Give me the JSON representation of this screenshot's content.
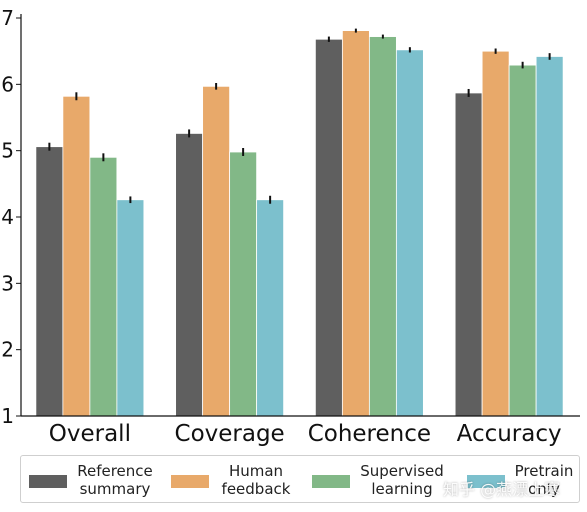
{
  "chart_data": {
    "type": "bar",
    "categories": [
      "Overall",
      "Coverage",
      "Coherence",
      "Accuracy"
    ],
    "series": [
      {
        "name": "Reference\nsummary",
        "color": "#5f5f5f",
        "values": [
          5.06,
          5.26,
          6.68,
          5.87
        ],
        "errors": [
          0.06,
          0.06,
          0.04,
          0.06
        ]
      },
      {
        "name": "Human\nfeedback",
        "color": "#e8a96a",
        "values": [
          5.82,
          5.97,
          6.81,
          6.5
        ],
        "errors": [
          0.06,
          0.05,
          0.03,
          0.04
        ]
      },
      {
        "name": "Supervised\nlearning",
        "color": "#82b887",
        "values": [
          4.9,
          4.98,
          6.72,
          6.29
        ],
        "errors": [
          0.06,
          0.06,
          0.03,
          0.05
        ]
      },
      {
        "name": "Pretrain\nonly",
        "color": "#7cc0cd",
        "values": [
          4.26,
          4.26,
          6.52,
          6.42
        ],
        "errors": [
          0.05,
          0.06,
          0.04,
          0.05
        ]
      }
    ],
    "y_ticks": [
      "1",
      "2",
      "3",
      "4",
      "5",
      "6",
      "7"
    ],
    "ylim": [
      1,
      7
    ],
    "grid": false,
    "legend_position": "bottom"
  },
  "watermark": "知乎 @燕漂上寒"
}
